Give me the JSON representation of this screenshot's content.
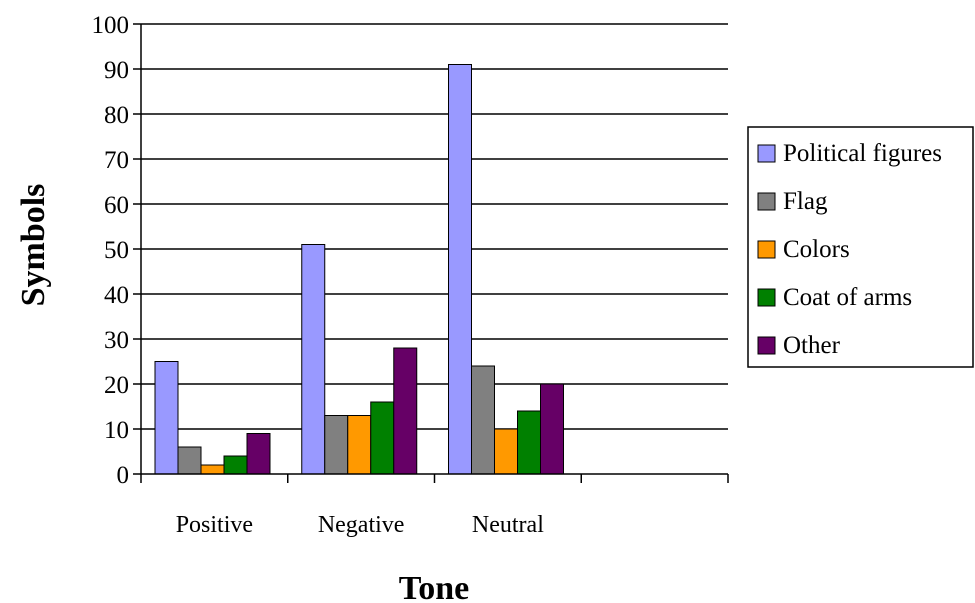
{
  "chart_data": {
    "type": "bar",
    "title": "",
    "xlabel": "Tone",
    "ylabel": "Symbols",
    "categories": [
      "Positive",
      "Negative",
      "Neutral",
      ""
    ],
    "ylim": [
      0,
      100
    ],
    "yticks": [
      0,
      10,
      20,
      30,
      40,
      50,
      60,
      70,
      80,
      90,
      100
    ],
    "grid": true,
    "legend_position": "right",
    "series": [
      {
        "name": "Political figures",
        "color": "#9999ff",
        "values": [
          25,
          51,
          91,
          null
        ]
      },
      {
        "name": "Flag",
        "color": "#808080",
        "values": [
          6,
          13,
          24,
          null
        ]
      },
      {
        "name": "Colors",
        "color": "#ff9900",
        "values": [
          2,
          13,
          10,
          null
        ]
      },
      {
        "name": "Coat of arms",
        "color": "#008000",
        "values": [
          4,
          16,
          14,
          null
        ]
      },
      {
        "name": "Other",
        "color": "#660066",
        "values": [
          9,
          28,
          20,
          null
        ]
      }
    ]
  }
}
